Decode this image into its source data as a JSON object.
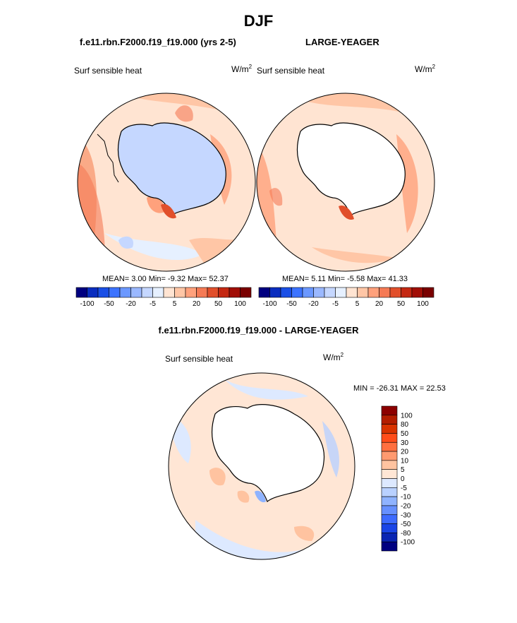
{
  "page": {
    "title": "DJF",
    "left_case": "f.e11.rbn.F2000.f19_f19.000 (yrs 2-5)",
    "right_case": "LARGE-YEAGER",
    "diff_title": "f.e11.rbn.F2000.f19_f19.000 - LARGE-YEAGER"
  },
  "panels": {
    "left": {
      "variable": "Surf sensible heat",
      "units_base": "W/m",
      "units_exp": "2",
      "stats": "MEAN=   3.00  Min=  -9.32  Max=  52.37"
    },
    "right": {
      "variable": "Surf sensible heat",
      "units_base": "W/m",
      "units_exp": "2",
      "stats": "MEAN=   5.11  Min=  -5.58  Max=  41.33"
    },
    "diff": {
      "variable": "Surf sensible heat",
      "units_base": "W/m",
      "units_exp": "2",
      "stats": "MIN = -26.31 MAX =  22.53"
    }
  },
  "chart_data": [
    {
      "type": "heatmap",
      "panel": "left",
      "projection": "south polar stereographic",
      "variable": "Surf sensible heat",
      "units": "W/m2",
      "mean": 3.0,
      "min": -9.32,
      "max": 52.37,
      "colorbar": {
        "orientation": "horizontal",
        "tick_labels": [
          "-100",
          "-50",
          "-20",
          "-5",
          "5",
          "20",
          "50",
          "100"
        ],
        "colors": [
          "#000080",
          "#0a2dbf",
          "#1a4fe6",
          "#3c73ff",
          "#6b98ff",
          "#9ab8ff",
          "#c5d7ff",
          "#e6f0ff",
          "#ffe4d2",
          "#ffc6a6",
          "#ffa17c",
          "#f57a55",
          "#e14f2b",
          "#c42812",
          "#a10e06",
          "#7a0000"
        ]
      }
    },
    {
      "type": "heatmap",
      "panel": "right",
      "projection": "south polar stereographic",
      "variable": "Surf sensible heat",
      "units": "W/m2",
      "mean": 5.11,
      "min": -5.58,
      "max": 41.33,
      "colorbar": {
        "orientation": "horizontal",
        "tick_labels": [
          "-100",
          "-50",
          "-20",
          "-5",
          "5",
          "20",
          "50",
          "100"
        ],
        "colors": [
          "#000080",
          "#0a2dbf",
          "#1a4fe6",
          "#3c73ff",
          "#6b98ff",
          "#9ab8ff",
          "#c5d7ff",
          "#e6f0ff",
          "#ffe4d2",
          "#ffc6a6",
          "#ffa17c",
          "#f57a55",
          "#e14f2b",
          "#c42812",
          "#a10e06",
          "#7a0000"
        ]
      }
    },
    {
      "type": "heatmap",
      "panel": "difference",
      "projection": "south polar stereographic",
      "variable": "Surf sensible heat",
      "units": "W/m2",
      "min": -26.31,
      "max": 22.53,
      "colorbar": {
        "orientation": "vertical",
        "tick_labels": [
          "100",
          "80",
          "50",
          "30",
          "20",
          "10",
          "5",
          "0",
          "-5",
          "-10",
          "-20",
          "-30",
          "-50",
          "-80",
          "-100"
        ],
        "colors": [
          "#8c0000",
          "#b31d00",
          "#d93300",
          "#ff4d1a",
          "#ff7040",
          "#ff9a70",
          "#ffc3a0",
          "#ffe6d5",
          "#dde9ff",
          "#b9d1ff",
          "#8fb3ff",
          "#6690ff",
          "#3d6bff",
          "#1a45e6",
          "#0a25b3",
          "#000080"
        ]
      }
    }
  ]
}
